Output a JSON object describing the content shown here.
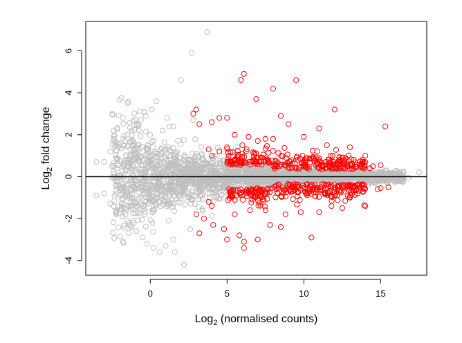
{
  "chart_data": {
    "type": "scatter",
    "plot_kind": "MA plot",
    "xlabel_prefix": "Log",
    "xlabel_sub": "2",
    "xlabel_suffix": " (normalised counts)",
    "ylabel_prefix": "Log",
    "ylabel_sub": "2",
    "ylabel_suffix": " fold change",
    "xlim": [
      -4.2,
      18.0
    ],
    "ylim": [
      -4.7,
      7.4
    ],
    "xticks": [
      0,
      5,
      10,
      15
    ],
    "yticks": [
      -4,
      -2,
      0,
      2,
      4,
      6
    ],
    "hline_y": 0,
    "colors": {
      "not_significant": "#bebebe",
      "significant": "#ff0000",
      "line": "#000000"
    },
    "series": [
      {
        "name": "",
        "color": "#bebebe",
        "points": [
          [
            -3.5,
            0.7
          ],
          [
            -3.0,
            0.7
          ],
          [
            -2.6,
            1.2
          ],
          [
            -2.2,
            1.5
          ],
          [
            -1.8,
            1.8
          ],
          [
            -1.5,
            2.0
          ],
          [
            -1.2,
            2.2
          ],
          [
            -0.9,
            2.5
          ],
          [
            -0.6,
            2.7
          ],
          [
            -0.3,
            2.9
          ],
          [
            0.1,
            3.2
          ],
          [
            0.4,
            3.6
          ],
          [
            1.1,
            2.8
          ],
          [
            2.0,
            4.6
          ],
          [
            2.7,
            5.9
          ],
          [
            3.7,
            6.9
          ],
          [
            -3.5,
            -0.9
          ],
          [
            -3.0,
            -0.8
          ],
          [
            -2.6,
            -1.3
          ],
          [
            -2.2,
            -1.6
          ],
          [
            -1.8,
            -1.9
          ],
          [
            -1.5,
            -2.1
          ],
          [
            -1.2,
            -2.4
          ],
          [
            -0.9,
            -2.6
          ],
          [
            -0.5,
            -2.9
          ],
          [
            -0.2,
            -3.2
          ],
          [
            0.2,
            -3.4
          ],
          [
            0.6,
            -3.6
          ],
          [
            1.0,
            -3.3
          ],
          [
            1.5,
            -3.0
          ],
          [
            2.2,
            -4.2
          ],
          [
            1.6,
            -3.6
          ],
          [
            1.2,
            -2.1
          ],
          [
            2.6,
            -2.5
          ],
          [
            0.8,
            2.2
          ],
          [
            1.5,
            2.4
          ],
          [
            2.8,
            2.7
          ],
          [
            15.4,
            0.3
          ],
          [
            16.0,
            0.25
          ],
          [
            16.5,
            0.2
          ],
          [
            17.5,
            0.2
          ],
          [
            15.5,
            -0.2
          ],
          [
            16.2,
            -0.1
          ],
          [
            16.8,
            -0.05
          ]
        ]
      },
      {
        "name": "",
        "color": "#ff0000",
        "points": [
          [
            2.8,
            3.0
          ],
          [
            3.0,
            3.2
          ],
          [
            4.5,
            2.8
          ],
          [
            4.0,
            2.6
          ],
          [
            5.0,
            2.8
          ],
          [
            5.9,
            4.6
          ],
          [
            6.1,
            4.9
          ],
          [
            6.9,
            3.7
          ],
          [
            8.0,
            4.2
          ],
          [
            9.5,
            4.6
          ],
          [
            8.5,
            2.9
          ],
          [
            9.0,
            2.5
          ],
          [
            11.0,
            2.3
          ],
          [
            12.0,
            3.2
          ],
          [
            15.3,
            2.4
          ],
          [
            5.5,
            2.0
          ],
          [
            6.4,
            1.9
          ],
          [
            7.0,
            1.7
          ],
          [
            7.5,
            1.8
          ],
          [
            6.0,
            1.5
          ],
          [
            5.0,
            1.4
          ],
          [
            4.5,
            1.2
          ],
          [
            3.8,
            1.3
          ],
          [
            8.0,
            1.8
          ],
          [
            10.0,
            1.9
          ],
          [
            11.5,
            1.5
          ],
          [
            13.0,
            1.4
          ],
          [
            14.0,
            1.0
          ],
          [
            4.0,
            1.0
          ],
          [
            3.2,
            2.5
          ],
          [
            12.8,
            0.6
          ],
          [
            13.8,
            0.7
          ],
          [
            14.5,
            0.5
          ],
          [
            15.0,
            0.55
          ],
          [
            14.3,
            0.4
          ],
          [
            3.0,
            -1.8
          ],
          [
            3.5,
            -2.0
          ],
          [
            3.2,
            -2.7
          ],
          [
            4.1,
            -2.3
          ],
          [
            4.8,
            -2.5
          ],
          [
            5.0,
            -3.0
          ],
          [
            5.8,
            -2.8
          ],
          [
            6.1,
            -3.4
          ],
          [
            6.1,
            -3.1
          ],
          [
            7.0,
            -3.0
          ],
          [
            7.8,
            -2.3
          ],
          [
            8.5,
            -2.4
          ],
          [
            10.5,
            -2.9
          ],
          [
            11.0,
            -1.7
          ],
          [
            12.5,
            -1.5
          ],
          [
            14.0,
            -1.4
          ],
          [
            15.0,
            -0.55
          ],
          [
            15.5,
            -0.5
          ],
          [
            5.5,
            -1.8
          ],
          [
            6.5,
            -1.6
          ],
          [
            7.5,
            -1.6
          ],
          [
            8.8,
            -1.8
          ],
          [
            9.8,
            -1.7
          ],
          [
            11.8,
            -1.4
          ],
          [
            13.0,
            -1.0
          ],
          [
            4.0,
            -1.4
          ],
          [
            3.8,
            -1.2
          ],
          [
            14.8,
            -0.6
          ],
          [
            13.5,
            -0.8
          ]
        ]
      }
    ]
  }
}
